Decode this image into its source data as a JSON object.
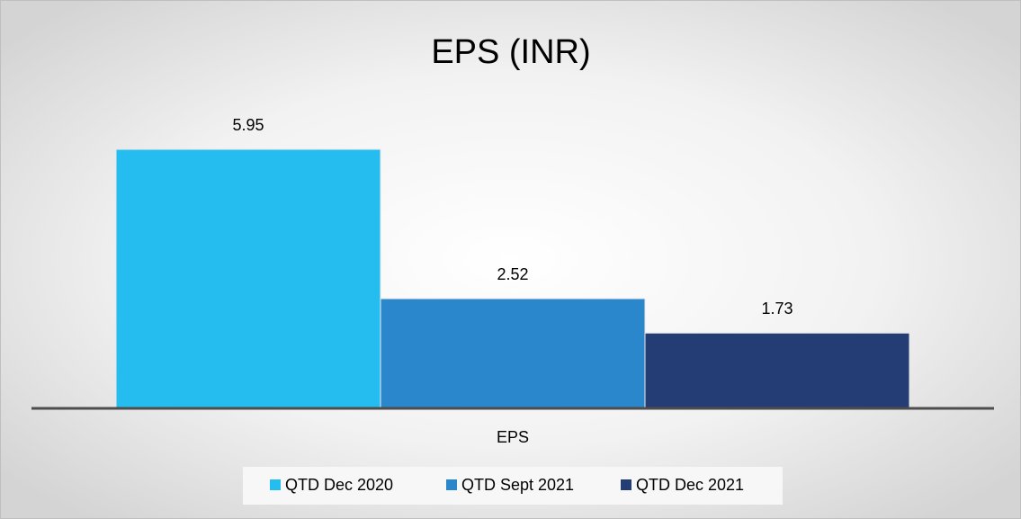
{
  "chart_data": {
    "type": "bar",
    "title": "EPS (INR)",
    "categories": [
      "EPS"
    ],
    "series": [
      {
        "name": "QTD Dec 2020",
        "color": "#25bdf0",
        "values": [
          5.95
        ]
      },
      {
        "name": "QTD Sept 2021",
        "color": "#2a87cc",
        "values": [
          2.52
        ]
      },
      {
        "name": "QTD Dec 2021",
        "color": "#243d74",
        "values": [
          1.73
        ]
      }
    ]
  }
}
